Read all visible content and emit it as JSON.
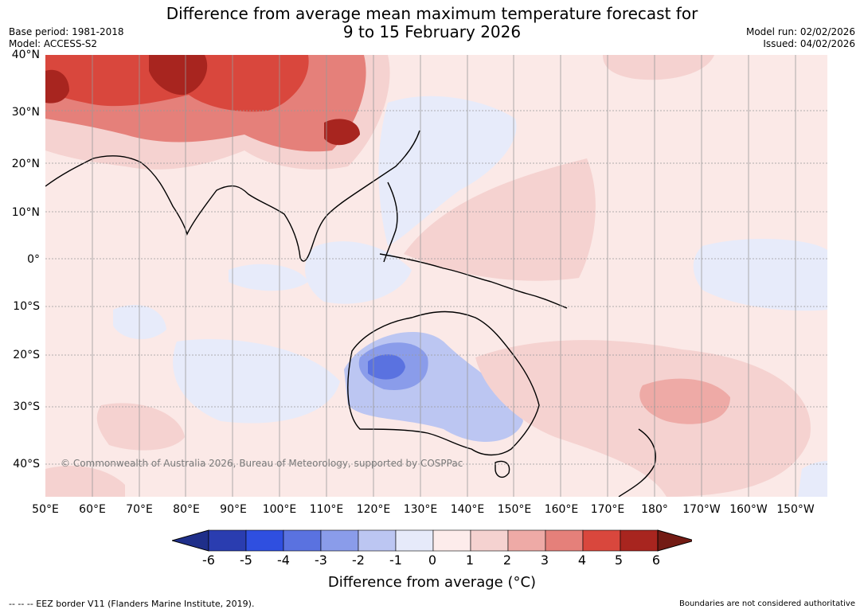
{
  "header": {
    "title_line1": "Difference from average mean maximum temperature forecast for",
    "title_line2": "9 to 15 February 2026",
    "base_period": "Base period: 1981-2018",
    "model": "Model: ACCESS-S2",
    "model_run": "Model run: 02/02/2026",
    "issued": "Issued: 04/02/2026"
  },
  "map": {
    "lat_labels": [
      "40°N",
      "30°N",
      "20°N",
      "10°N",
      "0°",
      "10°S",
      "20°S",
      "30°S",
      "40°S"
    ],
    "lon_labels": [
      "50°E",
      "60°E",
      "70°E",
      "80°E",
      "90°E",
      "100°E",
      "110°E",
      "120°E",
      "130°E",
      "140°E",
      "150°E",
      "160°E",
      "170°E",
      "180°",
      "170°W",
      "160°W",
      "150°W"
    ],
    "credit": "© Commonwealth of Australia 2026, Bureau of Meteorology, supported by COSPPac"
  },
  "legend": {
    "ticks": [
      "-6",
      "-5",
      "-4",
      "-3",
      "-2",
      "-1",
      "0",
      "1",
      "2",
      "3",
      "4",
      "5",
      "6"
    ],
    "colors": [
      "#1f2f8a",
      "#2a3db0",
      "#2f4fe0",
      "#5a72e0",
      "#8a9cea",
      "#bcc6f2",
      "#e6eafa",
      "#fdeceb",
      "#f5d2d0",
      "#eeaaa6",
      "#e5807a",
      "#d9473d",
      "#a8251f",
      "#731b14"
    ],
    "label": "Difference from average (°C)"
  },
  "footer": {
    "eez_note": "--  --  -- EEZ border V11 (Flanders Marine Institute, 2019).",
    "disclaimer": "Boundaries are not considered authoritative"
  }
}
